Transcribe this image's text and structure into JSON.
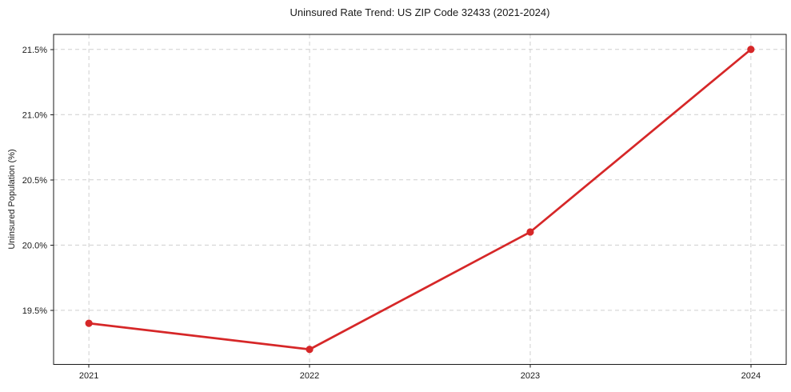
{
  "chart_data": {
    "type": "line",
    "title": "Uninsured Rate Trend: US ZIP Code 32433 (2021-2024)",
    "xlabel": "",
    "ylabel": "Uninsured Population (%)",
    "x": [
      2021,
      2022,
      2023,
      2024
    ],
    "values": [
      19.4,
      19.2,
      20.1,
      21.5
    ],
    "xtick_labels": [
      "2021",
      "2022",
      "2023",
      "2024"
    ],
    "ytick_values": [
      19.5,
      20.0,
      20.5,
      21.0,
      21.5
    ],
    "ytick_labels": [
      "19.5%",
      "20.0%",
      "20.5%",
      "21.0%",
      "21.5%"
    ],
    "xlim": [
      2020.84,
      2024.16
    ],
    "ylim": [
      19.085,
      21.615
    ],
    "grid": true,
    "grid_style": "dashed",
    "legend": "none",
    "line_color": "#d62728",
    "marker": "circle",
    "grid_color": "#cfcfcf",
    "axis_color": "#1a1a1a",
    "text_color": "#1a1a1a",
    "background_color": "#ffffff"
  }
}
